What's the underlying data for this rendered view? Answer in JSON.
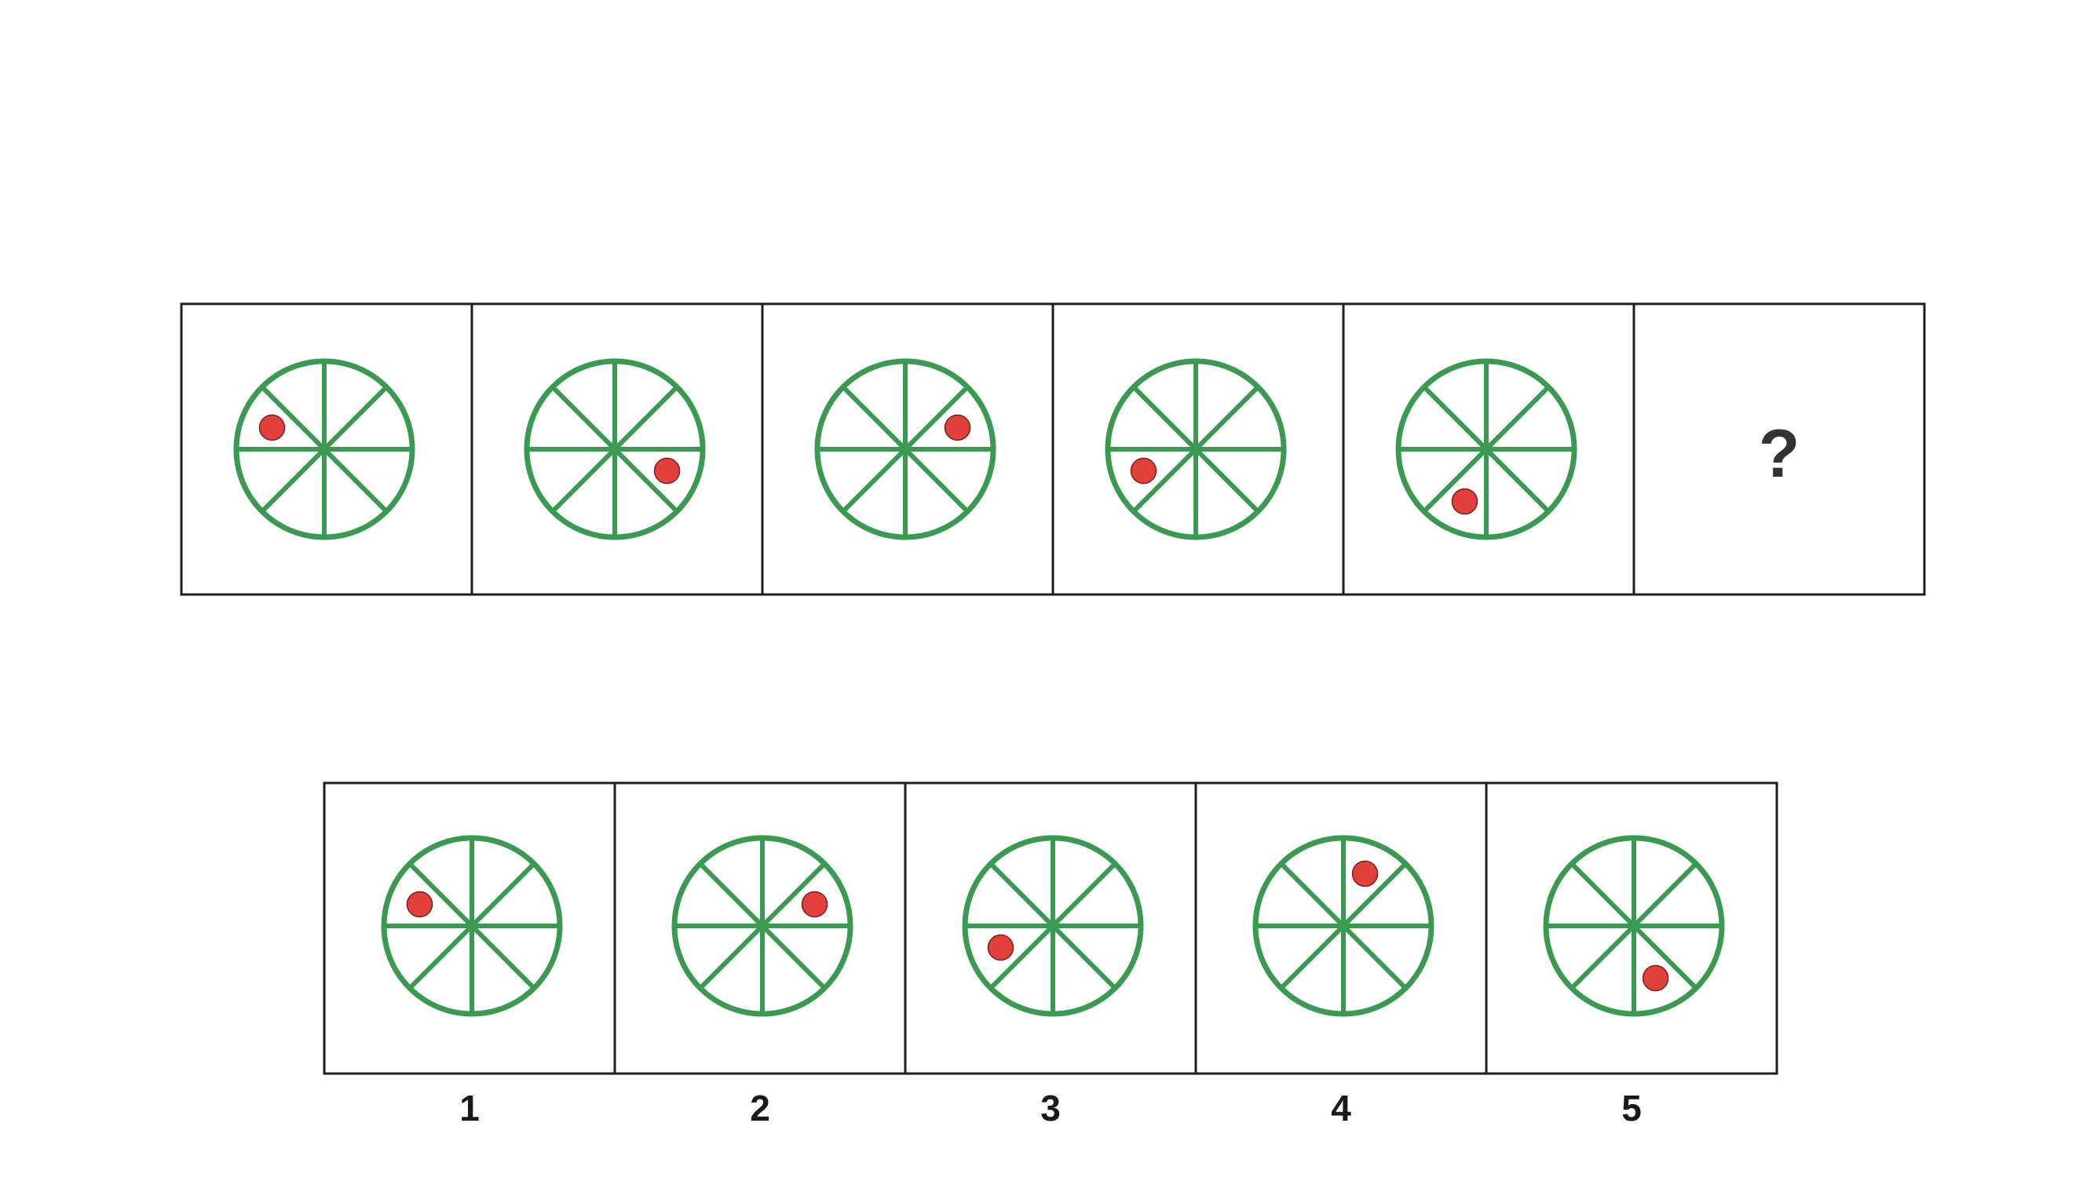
{
  "colors": {
    "wheel": "#3a9a52",
    "dot": "#e2413b",
    "frame": "#1f1f1f",
    "question_mark": "#333333"
  },
  "wheel": {
    "spokes": 8,
    "spoke_angles_deg": [
      0,
      45,
      90,
      135,
      180,
      225,
      270,
      315
    ]
  },
  "sequence": {
    "cells": [
      {
        "dot_angle_deg": 157.5
      },
      {
        "dot_angle_deg": 337.5
      },
      {
        "dot_angle_deg": 22.5
      },
      {
        "dot_angle_deg": 202.5
      },
      {
        "dot_angle_deg": 247.5
      }
    ],
    "unknown_label": "?"
  },
  "options": [
    {
      "label": "1",
      "dot_angle_deg": 157.5
    },
    {
      "label": "2",
      "dot_angle_deg": 22.5
    },
    {
      "label": "3",
      "dot_angle_deg": 202.5
    },
    {
      "label": "4",
      "dot_angle_deg": 67.5
    },
    {
      "label": "5",
      "dot_angle_deg": 292.5
    }
  ]
}
